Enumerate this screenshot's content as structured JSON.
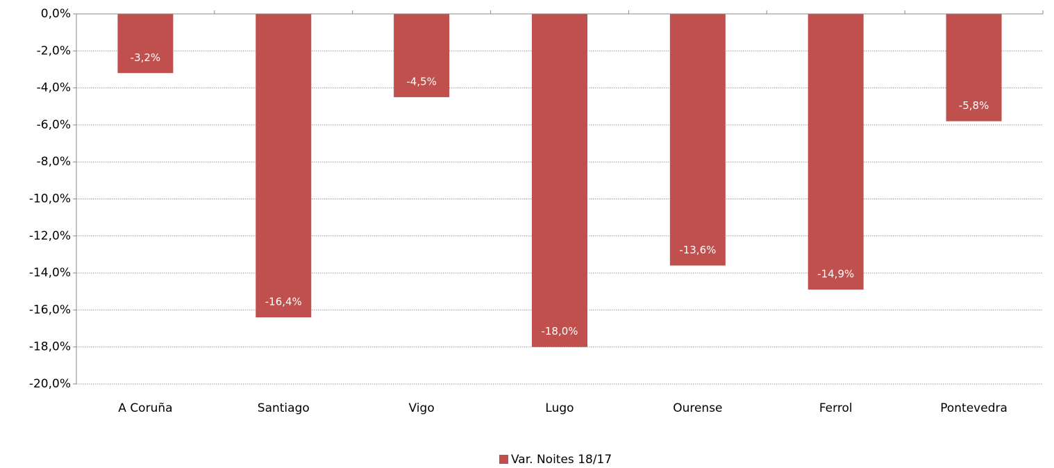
{
  "chart_data": {
    "type": "bar",
    "categories": [
      "A Coruña",
      "Santiago",
      "Vigo",
      "Lugo",
      "Ourense",
      "Ferrol",
      "Pontevedra"
    ],
    "series": [
      {
        "name": "Var. Noites 18/17",
        "color": "#c0504d",
        "values": [
          -3.2,
          -16.4,
          -4.5,
          -18.0,
          -13.6,
          -14.9,
          -5.8
        ],
        "value_labels": [
          "-3,2%",
          "-16,4%",
          "-4,5%",
          "-18,0%",
          "-13,6%",
          "-14,9%",
          "-5,8%"
        ]
      }
    ],
    "ylim": [
      -20,
      0
    ],
    "yticks": [
      {
        "value": 0,
        "label": "0,0%"
      },
      {
        "value": -2,
        "label": "-2,0%"
      },
      {
        "value": -4,
        "label": "-4,0%"
      },
      {
        "value": -6,
        "label": "-6,0%"
      },
      {
        "value": -8,
        "label": "-8,0%"
      },
      {
        "value": -10,
        "label": "-10,0%"
      },
      {
        "value": -12,
        "label": "-12,0%"
      },
      {
        "value": -14,
        "label": "-14,0%"
      },
      {
        "value": -16,
        "label": "-16,0%"
      },
      {
        "value": -18,
        "label": "-18,0%"
      },
      {
        "value": -20,
        "label": "-20,0%"
      }
    ],
    "grid": true,
    "legend": "bottom"
  }
}
